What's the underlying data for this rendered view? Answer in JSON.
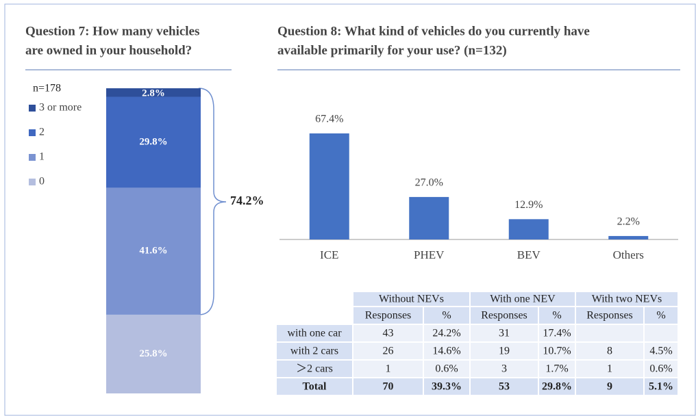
{
  "chart_data": [
    {
      "type": "stacked_bar",
      "title": [
        "Question 7: How many vehicles",
        "are owned in your household?"
      ],
      "subtitle": "n=178",
      "annotation": "74.2%",
      "ylim": [
        0,
        100
      ],
      "series": [
        {
          "name": "3 or more",
          "color": "#2e4f9a",
          "values": [
            2.8
          ],
          "value_labels": [
            "2.8%"
          ]
        },
        {
          "name": "2",
          "color": "#4068c0",
          "values": [
            29.8
          ],
          "value_labels": [
            "29.8%"
          ]
        },
        {
          "name": "1",
          "color": "#7b93d1",
          "values": [
            41.6
          ],
          "value_labels": [
            "41.6%"
          ]
        },
        {
          "name": "0",
          "color": "#b4bedf",
          "values": [
            25.8
          ],
          "value_labels": [
            "25.8%"
          ]
        }
      ]
    },
    {
      "type": "bar",
      "title": [
        "Question 8: What kind of vehicles do you currently have",
        "available primarily for your use? (n=132)"
      ],
      "categories": [
        "ICE",
        "PHEV",
        "BEV",
        "Others"
      ],
      "values": [
        67.4,
        27.0,
        12.9,
        2.2
      ],
      "value_labels": [
        "67.4%",
        "27.0%",
        "12.9%",
        "2.2%"
      ],
      "color": "#4472c4",
      "ylim": [
        0,
        80
      ]
    }
  ],
  "table": {
    "groups": [
      "Without NEVs",
      "With one NEV",
      "With two NEVs"
    ],
    "subheaders": [
      "Responses",
      "%",
      "Responses",
      "%",
      "Responses",
      "%"
    ],
    "rows": [
      [
        "with one car",
        "43",
        "24.2%",
        "31",
        "17.4%",
        null,
        null
      ],
      [
        "with 2 cars",
        "26",
        "14.6%",
        "19",
        "10.7%",
        "8",
        "4.5%"
      ],
      [
        "＞2 cars",
        "1",
        "0.6%",
        "3",
        "1.7%",
        "1",
        "0.6%"
      ],
      [
        "Total",
        "70",
        "39.3%",
        "53",
        "29.8%",
        "9",
        "5.1%"
      ]
    ]
  }
}
